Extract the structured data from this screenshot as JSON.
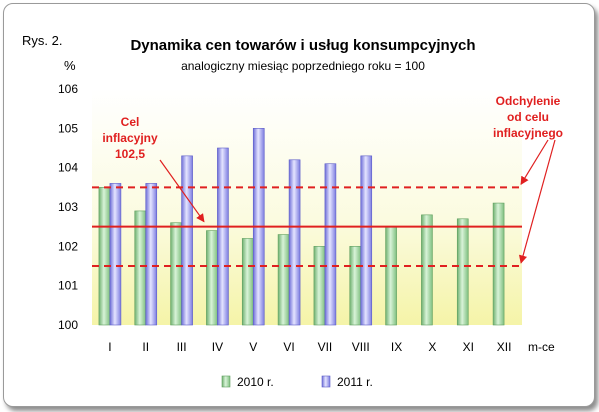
{
  "chart_data": {
    "type": "bar",
    "figure_label": "Rys. 2.",
    "title": "Dynamika cen towarów i usług konsumpcyjnych",
    "subtitle": "analogiczny miesiąc poprzedniego roku = 100",
    "ylabel": "%",
    "xlabel": "m-ce",
    "ylim": [
      100,
      106
    ],
    "yticks": [
      "100",
      "101",
      "102",
      "103",
      "104",
      "105",
      "106"
    ],
    "categories": [
      "I",
      "II",
      "III",
      "IV",
      "V",
      "VI",
      "VII",
      "VIII",
      "IX",
      "X",
      "XI",
      "XII"
    ],
    "series": [
      {
        "name": "2010 r.",
        "color": "#a8dca8",
        "values": [
          103.5,
          102.9,
          102.6,
          102.4,
          102.2,
          102.3,
          102.0,
          102.0,
          102.5,
          102.8,
          102.7,
          103.1
        ]
      },
      {
        "name": "2011 r.",
        "color": "#a8a8f4",
        "values": [
          103.6,
          103.6,
          104.3,
          104.5,
          105.0,
          104.2,
          104.1,
          104.3,
          null,
          null,
          null,
          null
        ]
      }
    ],
    "target": {
      "value": 102.5,
      "label_lines": [
        "Cel",
        "inflacyjny",
        "102,5"
      ],
      "color": "#e02020"
    },
    "deviation_band": {
      "lower": 101.5,
      "upper": 103.5,
      "label_lines": [
        "Odchylenie",
        "od celu",
        "inflacyjnego"
      ]
    },
    "legend_position": "bottom-center",
    "grid": false
  }
}
